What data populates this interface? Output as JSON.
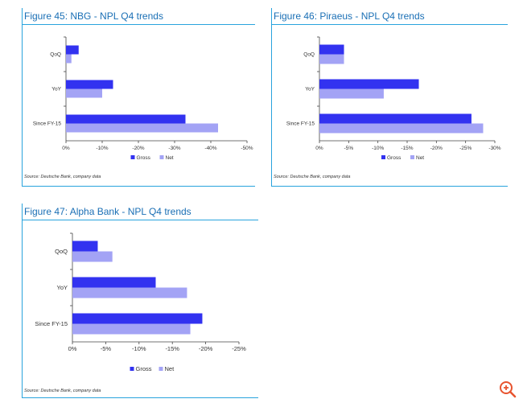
{
  "colors": {
    "gross": "#3232f0",
    "net": "#a3a3f5",
    "accent": "#1a6fb5",
    "rule": "#29a3dd",
    "zoom": "#e8542f"
  },
  "zoom_icon": "zoom-in-icon",
  "figures": [
    {
      "title": "Figure 45: NBG - NPL Q4 trends",
      "source": "Source: Deutsche Bank, company data",
      "legend": [
        "Gross",
        "Net"
      ],
      "chart_data": {
        "type": "bar",
        "orientation": "horizontal",
        "categories": [
          "QoQ",
          "YoY",
          "Since FY-15"
        ],
        "series": [
          {
            "name": "Gross",
            "values": [
              -3.5,
              -13.0,
              -33.0
            ]
          },
          {
            "name": "Net",
            "values": [
              -1.5,
              -10.0,
              -42.0
            ]
          }
        ],
        "xlim": [
          0,
          -50
        ],
        "ticks": [
          0,
          -10,
          -20,
          -30,
          -40,
          -50
        ],
        "tick_labels": [
          "0%",
          "-10%",
          "-20%",
          "-30%",
          "-40%",
          "-50%"
        ],
        "legend_position": "bottom-center"
      }
    },
    {
      "title": "Figure 46: Piraeus - NPL Q4 trends",
      "source": "Source: Deutsche Bank, company data",
      "legend": [
        "Gross",
        "Net"
      ],
      "chart_data": {
        "type": "bar",
        "orientation": "horizontal",
        "categories": [
          "QoQ",
          "YoY",
          "Since FY-15"
        ],
        "series": [
          {
            "name": "Gross",
            "values": [
              -4.2,
              -17.0,
              -26.0
            ]
          },
          {
            "name": "Net",
            "values": [
              -4.2,
              -11.0,
              -28.0
            ]
          }
        ],
        "xlim": [
          0,
          -30
        ],
        "ticks": [
          0,
          -5,
          -10,
          -15,
          -20,
          -25,
          -30
        ],
        "tick_labels": [
          "0%",
          "-5%",
          "-10%",
          "-15%",
          "-20%",
          "-25%",
          "-30%"
        ],
        "legend_position": "bottom-center"
      }
    },
    {
      "title": "Figure 47: Alpha Bank - NPL Q4 trends",
      "source": "Source: Deutsche Bank, company data",
      "legend": [
        "Gross",
        "Net"
      ],
      "chart_data": {
        "type": "bar",
        "orientation": "horizontal",
        "categories": [
          "QoQ",
          "YoY",
          "Since FY-15"
        ],
        "series": [
          {
            "name": "Gross",
            "values": [
              -3.8,
              -12.5,
              -19.5
            ]
          },
          {
            "name": "Net",
            "values": [
              -6.0,
              -17.2,
              -17.7
            ]
          }
        ],
        "xlim": [
          0,
          -25
        ],
        "ticks": [
          0,
          -5,
          -10,
          -15,
          -20,
          -25
        ],
        "tick_labels": [
          "0%",
          "-5%",
          "-10%",
          "-15%",
          "-20%",
          "-25%"
        ],
        "legend_position": "bottom-center"
      }
    }
  ]
}
